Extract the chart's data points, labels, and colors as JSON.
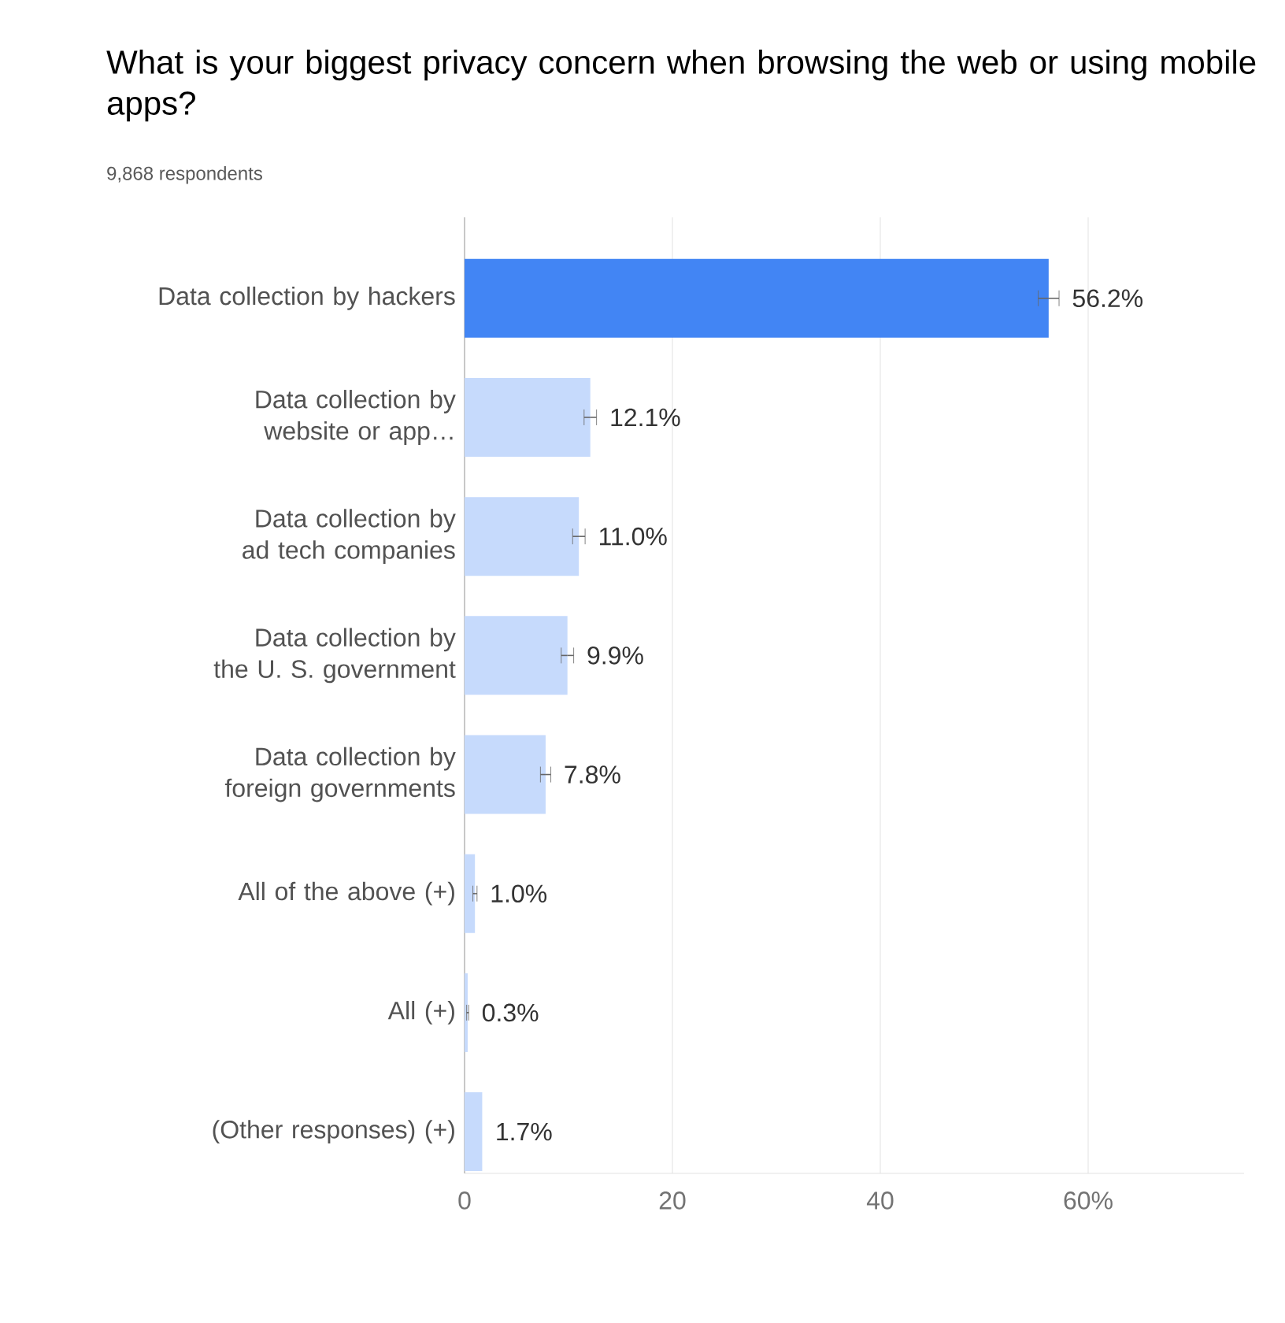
{
  "chart_data": {
    "type": "bar",
    "orientation": "horizontal",
    "title": "What is your biggest privacy concern when browsing the web or using mobile apps?",
    "subtitle": "9,868 respondents",
    "categories": [
      "Data collection by hackers",
      "Data collection by website or app…",
      "Data collection by ad tech companies",
      "Data collection by the U. S. government",
      "Data collection by foreign governments",
      "All of the above (+)",
      "All (+)",
      "(Other responses) (+)"
    ],
    "values": [
      56.2,
      12.1,
      11.0,
      9.9,
      7.8,
      1.0,
      0.3,
      1.7
    ],
    "errors": [
      1.0,
      0.6,
      0.6,
      0.6,
      0.5,
      0.2,
      0.1,
      null
    ],
    "value_labels": [
      "56.2%",
      "12.1%",
      "11.0%",
      "9.9%",
      "7.8%",
      "1.0%",
      "0.3%",
      "1.7%"
    ],
    "colors": [
      "#4285f4",
      "#c6dafc",
      "#c6dafc",
      "#c6dafc",
      "#c6dafc",
      "#c6dafc",
      "#c6dafc",
      "#c6dafc"
    ],
    "xlim": [
      0,
      75
    ],
    "xticks": [
      0,
      20,
      40,
      {
        "value": 60,
        "label": "60%"
      }
    ],
    "grid": "x"
  }
}
